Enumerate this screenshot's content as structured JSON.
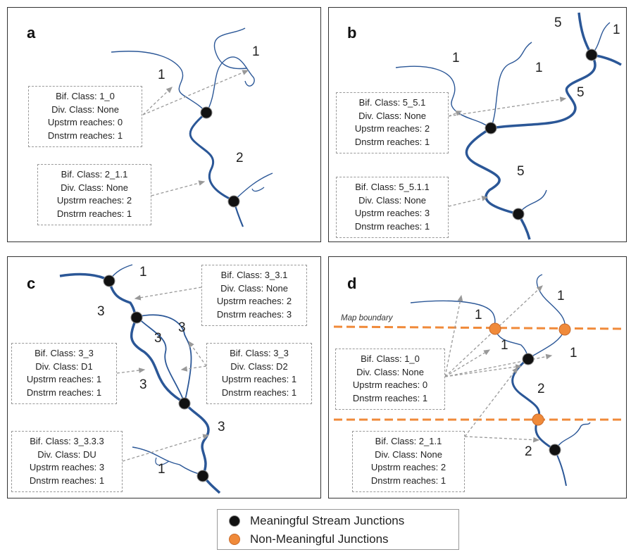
{
  "panels": {
    "a": {
      "label": "a",
      "boxes": [
        {
          "lines": [
            "Bif. Class: 1_0",
            "Div. Class: None",
            "Upstrm reaches: 0",
            "Dnstrm reaches: 1"
          ]
        },
        {
          "lines": [
            "Bif. Class: 2_1.1",
            "Div. Class: None",
            "Upstrm reaches: 2",
            "Dnstrm reaches: 1"
          ]
        }
      ],
      "reach_labels": [
        "1",
        "1",
        "2"
      ]
    },
    "b": {
      "label": "b",
      "boxes": [
        {
          "lines": [
            "Bif. Class: 5_5.1",
            "Div. Class: None",
            "Upstrm reaches: 2",
            "Dnstrm reaches: 1"
          ]
        },
        {
          "lines": [
            "Bif. Class: 5_5.1.1",
            "Div. Class: None",
            "Upstrm reaches: 3",
            "Dnstrm reaches: 1"
          ]
        }
      ],
      "reach_labels": [
        "5",
        "1",
        "1",
        "1",
        "5",
        "5"
      ]
    },
    "c": {
      "label": "c",
      "boxes": [
        {
          "lines": [
            "Bif. Class: 3_3.1",
            "Div. Class: None",
            "Upstrm reaches: 2",
            "Dnstrm reaches: 3"
          ]
        },
        {
          "lines": [
            "Bif. Class: 3_3",
            "Div. Class: D1",
            "Upstrm reaches: 1",
            "Dnstrm reaches: 1"
          ]
        },
        {
          "lines": [
            "Bif. Class: 3_3",
            "Div. Class: D2",
            "Upstrm reaches: 1",
            "Dnstrm reaches: 1"
          ]
        },
        {
          "lines": [
            "Bif. Class: 3_3.3.3",
            "Div. Class: DU",
            "Upstrm reaches: 3",
            "Dnstrm reaches: 1"
          ]
        }
      ],
      "reach_labels": [
        "1",
        "3",
        "3",
        "3",
        "3",
        "3",
        "1"
      ]
    },
    "d": {
      "label": "d",
      "map_boundary": "Map boundary",
      "boxes": [
        {
          "lines": [
            "Bif. Class: 1_0",
            "Div. Class: None",
            "Upstrm reaches: 0",
            "Dnstrm reaches: 1"
          ]
        },
        {
          "lines": [
            "Bif. Class: 2_1.1",
            "Div. Class: None",
            "Upstrm reaches: 2",
            "Dnstrm reaches: 1"
          ]
        }
      ],
      "reach_labels": [
        "1",
        "1",
        "1",
        "1",
        "2",
        "2"
      ]
    }
  },
  "legend": {
    "meaningful": {
      "label": "Meaningful Stream Junctions",
      "color": "#111111"
    },
    "non_meaningful": {
      "label": "Non-Meaningful Junctions",
      "color": "#f08a3a"
    }
  },
  "colors": {
    "main_stream": "#2b5797",
    "arrow": "#999999",
    "boundary": "#f08a3a"
  }
}
